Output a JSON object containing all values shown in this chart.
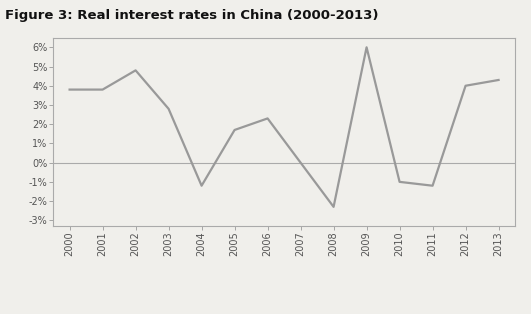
{
  "title": "Figure 3: Real interest rates in China (2000-2013)",
  "years": [
    2000,
    2001,
    2002,
    2003,
    2004,
    2005,
    2006,
    2007,
    2008,
    2009,
    2010,
    2011,
    2012,
    2013
  ],
  "values": [
    0.038,
    0.038,
    0.048,
    0.028,
    -0.012,
    0.017,
    0.023,
    0.0,
    -0.023,
    0.06,
    -0.01,
    -0.012,
    0.04,
    0.043
  ],
  "line_color": "#999999",
  "line_width": 1.6,
  "ylim": [
    -0.033,
    0.065
  ],
  "yticks": [
    -0.03,
    -0.02,
    -0.01,
    0.0,
    0.01,
    0.02,
    0.03,
    0.04,
    0.05,
    0.06
  ],
  "background_color": "#f0efeb",
  "plot_bg_color": "#f0efeb",
  "title_fontsize": 9.5,
  "tick_fontsize": 7,
  "zero_line_color": "#aaaaaa",
  "spine_color": "#aaaaaa",
  "tick_color": "#999999"
}
